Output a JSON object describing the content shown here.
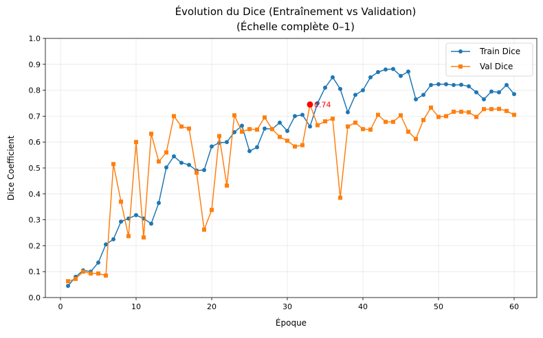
{
  "chart_data": {
    "type": "line",
    "title_line1": "Évolution du Dice (Entraînement vs Validation)",
    "title_line2": "(Échelle complète 0–1)",
    "xlabel": "Époque",
    "ylabel": "Dice Coefficient",
    "xlim": [
      -2.0,
      63.0
    ],
    "ylim": [
      0.0,
      1.0
    ],
    "xticks": [
      0,
      10,
      20,
      30,
      40,
      50,
      60
    ],
    "yticks": [
      0.0,
      0.1,
      0.2,
      0.3,
      0.4,
      0.5,
      0.6,
      0.7,
      0.8,
      0.9,
      1.0
    ],
    "grid": true,
    "legend_position": "top-right",
    "x": [
      1,
      2,
      3,
      4,
      5,
      6,
      7,
      8,
      9,
      10,
      11,
      12,
      13,
      14,
      15,
      16,
      17,
      18,
      19,
      20,
      21,
      22,
      23,
      24,
      25,
      26,
      27,
      28,
      29,
      30,
      31,
      32,
      33,
      34,
      35,
      36,
      37,
      38,
      39,
      40,
      41,
      42,
      43,
      44,
      45,
      46,
      47,
      48,
      49,
      50,
      51,
      52,
      53,
      54,
      55,
      56,
      57,
      58,
      59,
      60
    ],
    "series": [
      {
        "name": "Train Dice",
        "color": "#1f77b4",
        "marker": "circle",
        "values": [
          0.045,
          0.08,
          0.105,
          0.1,
          0.135,
          0.205,
          0.225,
          0.293,
          0.305,
          0.318,
          0.305,
          0.285,
          0.365,
          0.502,
          0.545,
          0.52,
          0.512,
          0.49,
          0.492,
          0.583,
          0.597,
          0.6,
          0.638,
          0.663,
          0.565,
          0.58,
          0.652,
          0.65,
          0.675,
          0.643,
          0.7,
          0.705,
          0.66,
          0.75,
          0.81,
          0.85,
          0.805,
          0.715,
          0.782,
          0.8,
          0.85,
          0.87,
          0.88,
          0.882,
          0.855,
          0.872,
          0.765,
          0.782,
          0.82,
          0.823,
          0.823,
          0.82,
          0.821,
          0.815,
          0.792,
          0.765,
          0.795,
          0.792,
          0.82,
          0.785
        ]
      },
      {
        "name": "Val Dice",
        "color": "#ff7f0e",
        "marker": "square",
        "values": [
          0.063,
          0.072,
          0.1,
          0.093,
          0.093,
          0.085,
          0.515,
          0.37,
          0.237,
          0.6,
          0.232,
          0.632,
          0.525,
          0.56,
          0.7,
          0.66,
          0.652,
          0.482,
          0.262,
          0.338,
          0.623,
          0.432,
          0.703,
          0.64,
          0.65,
          0.648,
          0.695,
          0.65,
          0.62,
          0.605,
          0.583,
          0.588,
          0.745,
          0.665,
          0.68,
          0.69,
          0.385,
          0.66,
          0.675,
          0.65,
          0.648,
          0.705,
          0.678,
          0.678,
          0.703,
          0.64,
          0.612,
          0.685,
          0.733,
          0.697,
          0.7,
          0.717,
          0.717,
          0.715,
          0.697,
          0.727,
          0.727,
          0.728,
          0.72,
          0.705
        ]
      }
    ],
    "annotation": {
      "x": 33,
      "y": 0.745,
      "text": "0.74",
      "color": "#ff0000"
    }
  }
}
